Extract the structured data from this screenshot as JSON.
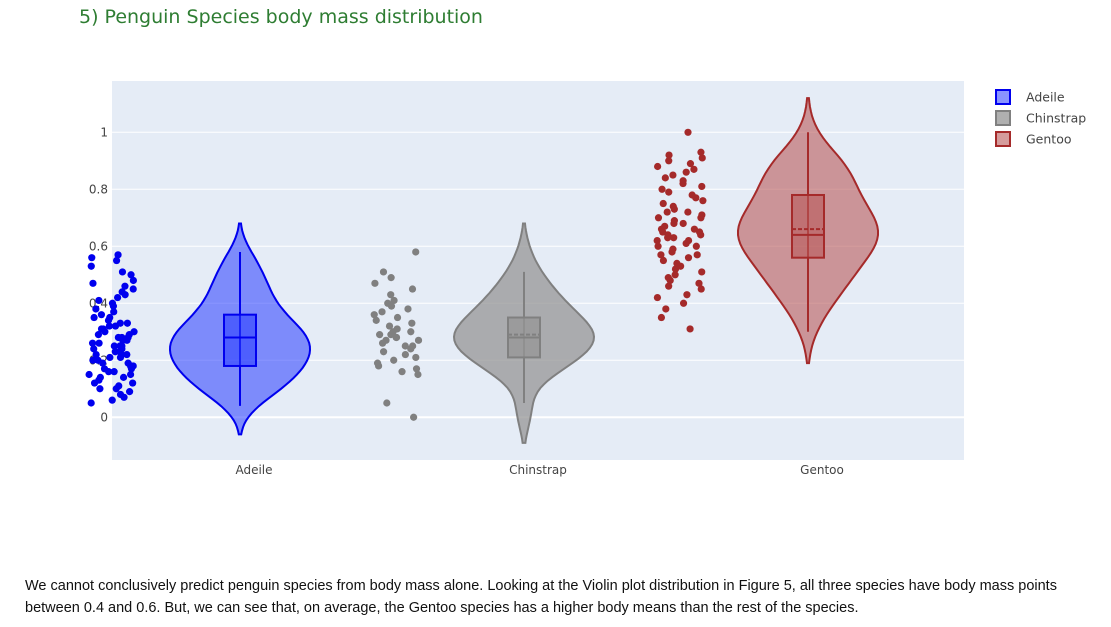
{
  "page": {
    "title": "5) Penguin Species body mass distribution",
    "caption": "We cannot conclusively predict penguin species from body mass alone. Looking at the Violin plot distribution in Figure 5, all three species have body mass points between 0.4 and 0.6. But, we can see that, on average, the Gentoo species has a higher body means than the rest of the species."
  },
  "chart_data": {
    "type": "violin",
    "title": "5) Penguin Species body mass distribution",
    "categories": [
      "Adeile",
      "Chinstrap",
      "Gentoo"
    ],
    "yticks": [
      0,
      0.2,
      0.4,
      0.6,
      0.8,
      1
    ],
    "ylim": [
      -0.15,
      1.18
    ],
    "grid": true,
    "legend_position": "top-right",
    "series": [
      {
        "name": "Adeile",
        "color": "#0000ee",
        "fill": "rgba(40,60,255,0.55)",
        "box": {
          "min": 0.04,
          "q1": 0.18,
          "median": 0.28,
          "q3": 0.36,
          "max": 0.58,
          "mean": 0.28
        },
        "violin": {
          "min": -0.06,
          "max": 0.68
        },
        "points": [
          0.05,
          0.06,
          0.07,
          0.08,
          0.09,
          0.1,
          0.1,
          0.11,
          0.12,
          0.12,
          0.13,
          0.14,
          0.14,
          0.15,
          0.15,
          0.16,
          0.16,
          0.17,
          0.17,
          0.18,
          0.18,
          0.19,
          0.19,
          0.2,
          0.2,
          0.21,
          0.21,
          0.22,
          0.22,
          0.22,
          0.23,
          0.23,
          0.24,
          0.24,
          0.25,
          0.25,
          0.25,
          0.26,
          0.26,
          0.27,
          0.27,
          0.28,
          0.28,
          0.28,
          0.29,
          0.29,
          0.3,
          0.3,
          0.31,
          0.31,
          0.32,
          0.32,
          0.33,
          0.33,
          0.34,
          0.35,
          0.35,
          0.36,
          0.37,
          0.38,
          0.39,
          0.4,
          0.41,
          0.42,
          0.43,
          0.44,
          0.45,
          0.46,
          0.47,
          0.48,
          0.5,
          0.51,
          0.53,
          0.55,
          0.56,
          0.57
        ]
      },
      {
        "name": "Chinstrap",
        "color": "#808080",
        "fill": "rgba(150,150,150,0.75)",
        "box": {
          "min": 0.05,
          "q1": 0.21,
          "median": 0.28,
          "q3": 0.35,
          "max": 0.51,
          "mean": 0.29
        },
        "violin": {
          "min": -0.09,
          "max": 0.68
        },
        "points": [
          0.0,
          0.05,
          0.15,
          0.16,
          0.17,
          0.18,
          0.19,
          0.2,
          0.21,
          0.22,
          0.23,
          0.24,
          0.25,
          0.25,
          0.26,
          0.27,
          0.27,
          0.28,
          0.28,
          0.29,
          0.29,
          0.3,
          0.3,
          0.31,
          0.32,
          0.33,
          0.34,
          0.35,
          0.36,
          0.37,
          0.38,
          0.39,
          0.4,
          0.41,
          0.43,
          0.45,
          0.47,
          0.49,
          0.51,
          0.58
        ]
      },
      {
        "name": "Gentoo",
        "color": "#a52a2a",
        "fill": "rgba(185,90,90,0.6)",
        "box": {
          "min": 0.3,
          "q1": 0.56,
          "median": 0.64,
          "q3": 0.78,
          "max": 1.0,
          "mean": 0.66
        },
        "violin": {
          "min": 0.19,
          "max": 1.12
        },
        "points": [
          0.31,
          0.35,
          0.38,
          0.4,
          0.42,
          0.43,
          0.45,
          0.46,
          0.47,
          0.48,
          0.49,
          0.5,
          0.51,
          0.52,
          0.53,
          0.54,
          0.55,
          0.56,
          0.57,
          0.57,
          0.58,
          0.59,
          0.6,
          0.6,
          0.61,
          0.62,
          0.62,
          0.63,
          0.63,
          0.64,
          0.64,
          0.65,
          0.65,
          0.66,
          0.66,
          0.67,
          0.68,
          0.68,
          0.69,
          0.7,
          0.7,
          0.71,
          0.72,
          0.72,
          0.73,
          0.74,
          0.75,
          0.76,
          0.77,
          0.78,
          0.79,
          0.8,
          0.81,
          0.82,
          0.83,
          0.84,
          0.85,
          0.86,
          0.87,
          0.88,
          0.89,
          0.9,
          0.91,
          0.92,
          0.93,
          1.0
        ]
      }
    ]
  }
}
